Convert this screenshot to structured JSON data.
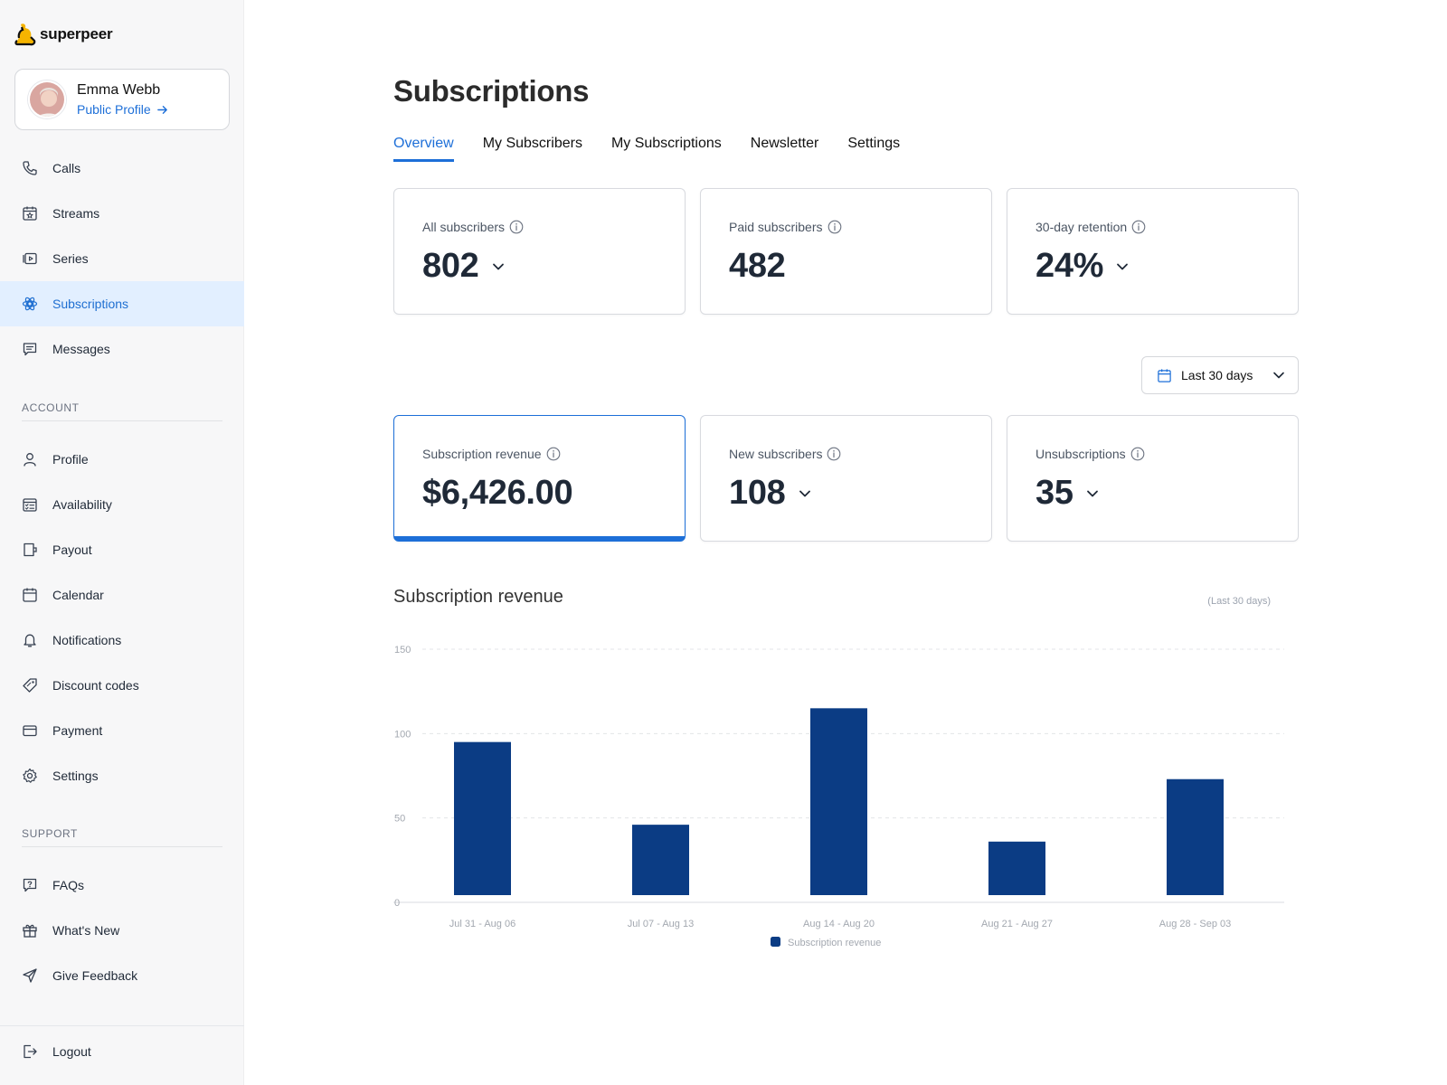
{
  "app": {
    "brand": "superpeer"
  },
  "user": {
    "name": "Emma Webb",
    "profile_link": "Public Profile"
  },
  "sidebar": {
    "main_items": [
      {
        "label": "Calls",
        "icon": "phone-icon",
        "active": false
      },
      {
        "label": "Streams",
        "icon": "calendar-star-icon",
        "active": false
      },
      {
        "label": "Series",
        "icon": "series-icon",
        "active": false
      },
      {
        "label": "Subscriptions",
        "icon": "subscriptions-icon",
        "active": true
      },
      {
        "label": "Messages",
        "icon": "message-icon",
        "active": false
      }
    ],
    "account_label": "ACCOUNT",
    "account_items": [
      {
        "label": "Profile",
        "icon": "user-icon"
      },
      {
        "label": "Availability",
        "icon": "availability-icon"
      },
      {
        "label": "Payout",
        "icon": "wallet-icon"
      },
      {
        "label": "Calendar",
        "icon": "calendar-icon"
      },
      {
        "label": "Notifications",
        "icon": "bell-icon"
      },
      {
        "label": "Discount codes",
        "icon": "tag-icon"
      },
      {
        "label": "Payment",
        "icon": "credit-card-icon"
      },
      {
        "label": "Settings",
        "icon": "gear-icon"
      }
    ],
    "support_label": "SUPPORT",
    "support_items": [
      {
        "label": "FAQs",
        "icon": "question-icon"
      },
      {
        "label": "What's New",
        "icon": "gift-icon"
      },
      {
        "label": "Give Feedback",
        "icon": "send-icon"
      }
    ],
    "logout_label": "Logout"
  },
  "page": {
    "title": "Subscriptions",
    "tabs": [
      {
        "label": "Overview",
        "active": true
      },
      {
        "label": "My Subscribers",
        "active": false
      },
      {
        "label": "My Subscriptions",
        "active": false
      },
      {
        "label": "Newsletter",
        "active": false
      },
      {
        "label": "Settings",
        "active": false
      }
    ]
  },
  "stats_top": [
    {
      "label": "All subscribers",
      "value": "802",
      "dropdown": true
    },
    {
      "label": "Paid subscribers",
      "value": "482",
      "dropdown": false
    },
    {
      "label": "30-day retention",
      "value": "24%",
      "dropdown": true
    }
  ],
  "date_filter": {
    "label": "Last 30 days"
  },
  "stats_bottom": [
    {
      "label": "Subscription revenue",
      "value": "$6,426.00",
      "dropdown": false,
      "selected": true
    },
    {
      "label": "New subscribers",
      "value": "108",
      "dropdown": true,
      "selected": false
    },
    {
      "label": "Unsubscriptions",
      "value": "35",
      "dropdown": true,
      "selected": false
    }
  ],
  "chart_section": {
    "title": "Subscription revenue",
    "range_note": "(Last 30 days)"
  },
  "colors": {
    "accent": "#1d6fd8",
    "bar": "#0b3c84",
    "active_bg": "#e2efff"
  },
  "chart_data": {
    "type": "bar",
    "categories": [
      "Jul 31 - Aug 06",
      "Jul 07 - Aug 13",
      "Aug 14 - Aug 20",
      "Aug 21 - Aug 27",
      "Aug 28 - Sep 03"
    ],
    "series": [
      {
        "name": "Subscription revenue",
        "values": [
          95,
          46,
          115,
          36,
          73
        ]
      }
    ],
    "y_ticks": [
      0,
      50,
      100,
      150
    ],
    "ylim": [
      0,
      150
    ],
    "grid": true,
    "legend": "bottom-center"
  }
}
